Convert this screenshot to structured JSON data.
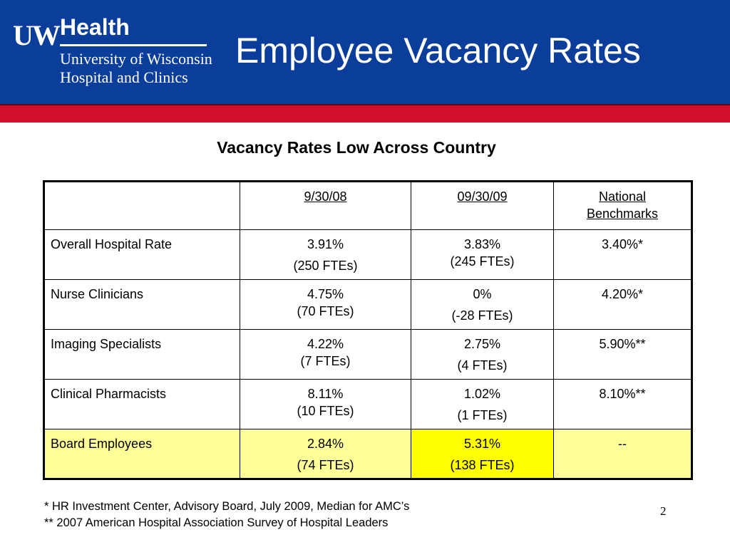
{
  "logo": {
    "uw": "UW",
    "health": "Health",
    "line1": "University of Wisconsin",
    "line2": "Hospital and Clinics"
  },
  "title": "Employee Vacancy Rates",
  "subtitle": "Vacancy Rates Low Across Country",
  "table": {
    "headers": [
      "",
      "9/30/08",
      "09/30/09",
      "National",
      "Benchmarks"
    ],
    "rows": [
      {
        "label": "Overall Hospital Rate",
        "c1": [
          "3.91%",
          "(250 FTEs)"
        ],
        "c2": [
          "3.83%",
          "(245 FTEs)"
        ],
        "c3": "3.40%*"
      },
      {
        "label": "Nurse Clinicians",
        "c1": [
          "4.75%",
          "(70 FTEs)"
        ],
        "c2": [
          "0%",
          "(-28 FTEs)"
        ],
        "c3": "4.20%*"
      },
      {
        "label": "Imaging Specialists",
        "c1": [
          "4.22%",
          "(7 FTEs)"
        ],
        "c2": [
          "2.75%",
          "(4 FTEs)"
        ],
        "c3": "5.90%**"
      },
      {
        "label": "Clinical Pharmacists",
        "c1": [
          "8.11%",
          "(10 FTEs)"
        ],
        "c2": [
          "1.02%",
          "(1 FTEs)"
        ],
        "c3": "8.10%**"
      },
      {
        "label": "Board Employees",
        "c1": [
          "2.84%",
          "(74 FTEs)"
        ],
        "c2": [
          "5.31%",
          "(138 FTEs)"
        ],
        "c3": "--"
      }
    ]
  },
  "footnotes": [
    "* HR Investment Center, Advisory Board, July 2009, Median for AMC’s",
    "** 2007 American Hospital Association Survey of Hospital Leaders"
  ],
  "page_number": "2",
  "colors": {
    "header_blue": "#0b3d9a",
    "band_red": "#d0102a",
    "row_highlight": "#ffff99",
    "cell_highlight": "#ffff00"
  }
}
